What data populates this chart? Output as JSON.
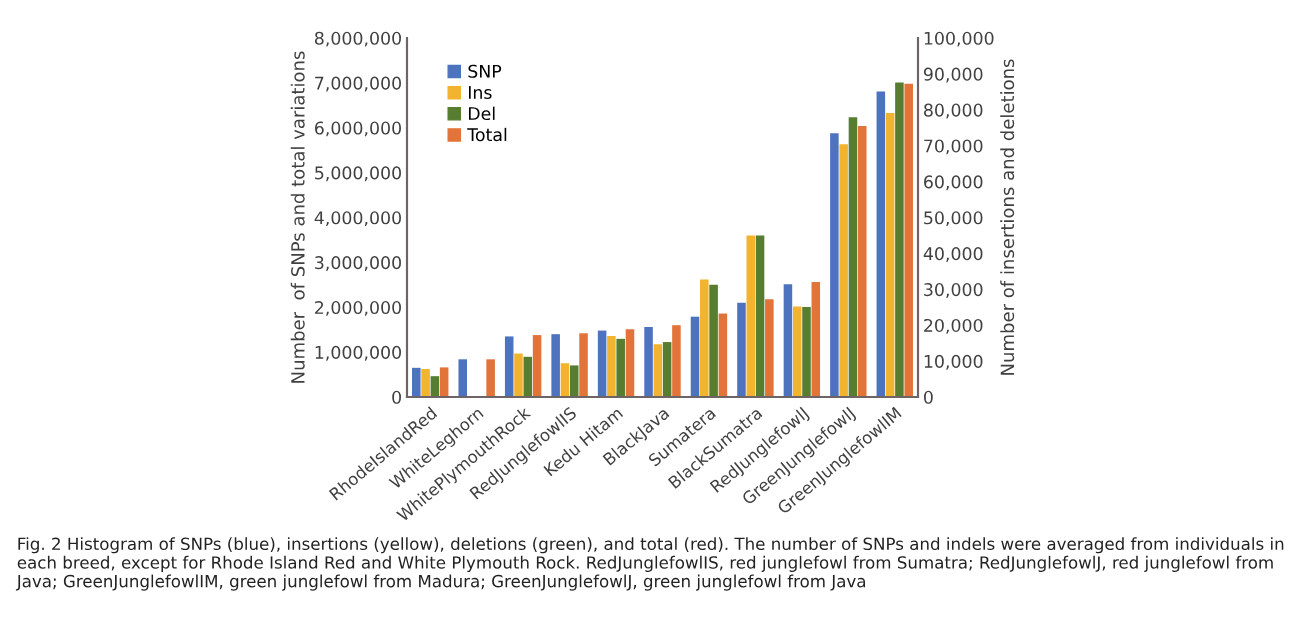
{
  "chart_data": {
    "type": "bar",
    "categories": [
      "RhodeIslandRed",
      "WhiteLeghorn",
      "WhitePlymouthRock",
      "RedJunglefowlIS",
      "Kedu Hitam",
      "BlackJava",
      "Sumatera",
      "BlackSumatra",
      "RedJunglefowlJ",
      "GreenJunglefowlJ",
      "GreenJunglefowlIM"
    ],
    "series": [
      {
        "name": "SNP",
        "color": "#4e73be",
        "values": [
          650000,
          840000,
          1350000,
          1400000,
          1480000,
          1560000,
          1790000,
          2100000,
          2510000,
          5880000,
          6810000
        ]
      },
      {
        "name": "Ins",
        "color": "#f2b42f",
        "axis": "y2",
        "values": [
          7800,
          null,
          12100,
          9400,
          17000,
          14700,
          32700,
          45000,
          25200,
          70400,
          79100
        ]
      },
      {
        "name": "Del",
        "color": "#567d30",
        "axis": "y2",
        "values": [
          5800,
          null,
          11200,
          8800,
          16200,
          15300,
          31300,
          45000,
          25100,
          77900,
          87600
        ]
      },
      {
        "name": "Total",
        "color": "#e2743a",
        "values": [
          660000,
          840000,
          1380000,
          1420000,
          1510000,
          1600000,
          1860000,
          2180000,
          2560000,
          6040000,
          6980000
        ]
      }
    ],
    "ylabel": "Number  of SNPs and total variations",
    "y2label": "Number of insertions and deletions",
    "ylim": [
      0,
      8000000
    ],
    "yticks": [
      {
        "value": 0,
        "label": "0"
      },
      {
        "value": 1000000,
        "label": "1,000,000"
      },
      {
        "value": 2000000,
        "label": "2,000,000"
      },
      {
        "value": 3000000,
        "label": "3,000,000"
      },
      {
        "value": 4000000,
        "label": "4,000,000"
      },
      {
        "value": 5000000,
        "label": "5,000,000"
      },
      {
        "value": 6000000,
        "label": "6,000,000"
      },
      {
        "value": 7000000,
        "label": "7,000,000"
      },
      {
        "value": 8000000,
        "label": "8,000,000"
      }
    ],
    "y2lim": [
      0,
      100000
    ],
    "y2ticks": [
      {
        "value": 0,
        "label": "0"
      },
      {
        "value": 10000,
        "label": "10,000"
      },
      {
        "value": 20000,
        "label": "20,000"
      },
      {
        "value": 30000,
        "label": "30,000"
      },
      {
        "value": 40000,
        "label": "40,000"
      },
      {
        "value": 50000,
        "label": "50,000"
      },
      {
        "value": 60000,
        "label": "60,000"
      },
      {
        "value": 70000,
        "label": "70,000"
      },
      {
        "value": 80000,
        "label": "80,000"
      },
      {
        "value": 90000,
        "label": "90,000"
      },
      {
        "value": 100000,
        "label": "100,000"
      }
    ],
    "legend": "top left",
    "grid": false,
    "annotations": [
      "Fig. 2 Histogram of SNPs (blue), insertions (yellow), deletions (green), and total (red). The number of SNPs and indels were averaged from individuals in each breed, except for Rhode Island Red and White Plymouth Rock. RedJunglefowlIS, red junglefowl from Sumatra; RedJunglefowlJ, red junglefowl from Java; GreenJunglefowlIM, green junglefowl from Madura; GreenJunglefowlJ, green junglefowl from Java"
    ]
  }
}
